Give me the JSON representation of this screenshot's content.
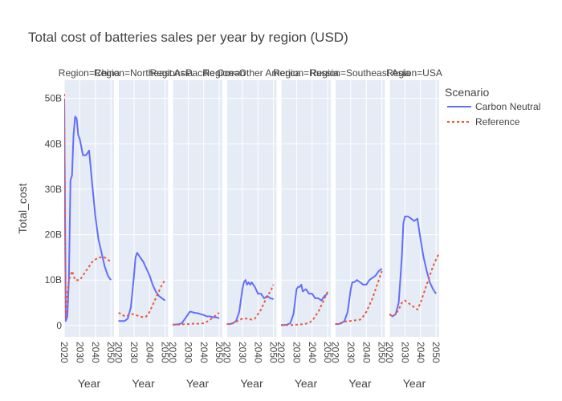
{
  "chart_data": {
    "type": "line",
    "title": "Total cost of batteries sales per year by region (USD)",
    "xlabel": "Year",
    "ylabel": "Total_cost",
    "xlim": [
      2020,
      2052
    ],
    "ylim": [
      -2.5,
      54
    ],
    "x_ticks": [
      "2020",
      "2030",
      "2040",
      "2050"
    ],
    "y_ticks": [
      {
        "value": 0,
        "label": "0"
      },
      {
        "value": 10,
        "label": "10B"
      },
      {
        "value": 20,
        "label": "20B"
      },
      {
        "value": 30,
        "label": "30B"
      },
      {
        "value": 40,
        "label": "40B"
      },
      {
        "value": 50,
        "label": "50B"
      }
    ],
    "y_unit": "billions USD",
    "legend": {
      "title": "Scenario",
      "placement": "right",
      "entries": [
        {
          "name": "Carbon Neutral",
          "color": "#636efa",
          "dash": "solid"
        },
        {
          "name": "Reference",
          "color": "#ef553b",
          "dash": "dot"
        }
      ]
    },
    "facets": [
      {
        "label": "Region=China",
        "series": [
          {
            "name": "Carbon Neutral",
            "x": [
              2020,
              2021,
              2022,
              2023,
              2024,
              2025,
              2026,
              2027,
              2028,
              2029,
              2030,
              2032,
              2034,
              2036,
              2038,
              2040,
              2042,
              2044,
              2046,
              2048,
              2050
            ],
            "y": [
              50,
              1,
              2,
              10,
              32,
              33,
              42,
              46,
              45.5,
              42,
              41,
              37.5,
              37.5,
              38.5,
              31,
              24,
              19,
              16,
              13,
              11,
              10
            ]
          },
          {
            "name": "Reference",
            "x": [
              2020,
              2021,
              2022,
              2023,
              2024,
              2025,
              2026,
              2027,
              2028,
              2030,
              2032,
              2034,
              2036,
              2038,
              2040,
              2042,
              2044,
              2046,
              2048,
              2050
            ],
            "y": [
              51,
              1.5,
              7,
              10,
              11,
              12,
              11,
              10,
              10,
              10,
              11,
              12,
              13,
              14,
              14.5,
              15,
              15,
              15,
              14.5,
              14
            ]
          }
        ]
      },
      {
        "label": "Region=Northeast Asia",
        "series": [
          {
            "name": "Carbon Neutral",
            "x": [
              2020,
              2022,
              2024,
              2026,
              2028,
              2030,
              2031,
              2032,
              2034,
              2036,
              2038,
              2040,
              2042,
              2044,
              2046,
              2048,
              2050
            ],
            "y": [
              1,
              1,
              1,
              1.5,
              4,
              11,
              15,
              16,
              15,
              14,
              12.5,
              11,
              9,
              7.5,
              6.5,
              6,
              5.5
            ]
          },
          {
            "name": "Reference",
            "x": [
              2020,
              2022,
              2024,
              2026,
              2028,
              2030,
              2032,
              2034,
              2036,
              2038,
              2040,
              2042,
              2044,
              2046,
              2048,
              2050
            ],
            "y": [
              2.8,
              2.5,
              2,
              2.2,
              2.5,
              2.5,
              2.2,
              2,
              1.8,
              2,
              3,
              4.5,
              6,
              7.5,
              9,
              10
            ]
          }
        ]
      },
      {
        "label": "Region=Pacific Ocean",
        "series": [
          {
            "name": "Carbon Neutral",
            "x": [
              2020,
              2022,
              2024,
              2026,
              2028,
              2030,
              2031,
              2032,
              2034,
              2036,
              2038,
              2040,
              2042,
              2044,
              2046,
              2048,
              2050
            ],
            "y": [
              0.2,
              0.2,
              0.3,
              0.5,
              1.5,
              2.5,
              3,
              3,
              2.8,
              2.7,
              2.5,
              2.3,
              2,
              2,
              1.8,
              1.8,
              1.6
            ]
          },
          {
            "name": "Reference",
            "x": [
              2020,
              2022,
              2024,
              2026,
              2028,
              2030,
              2032,
              2034,
              2036,
              2038,
              2040,
              2042,
              2044,
              2046,
              2048,
              2050
            ],
            "y": [
              0.2,
              0.2,
              0.2,
              0.2,
              0.3,
              0.3,
              0.4,
              0.4,
              0.4,
              0.4,
              0.5,
              0.8,
              1.2,
              1.8,
              2.3,
              2.8
            ]
          }
        ]
      },
      {
        "label": "Region=Other America",
        "series": [
          {
            "name": "Carbon Neutral",
            "x": [
              2020,
              2022,
              2024,
              2026,
              2028,
              2030,
              2031,
              2032,
              2033,
              2034,
              2035,
              2036,
              2037,
              2038,
              2040,
              2042,
              2044,
              2046,
              2048,
              2050
            ],
            "y": [
              0.3,
              0.3,
              0.5,
              1,
              3,
              8,
              9.5,
              10,
              9,
              9.5,
              9,
              9.5,
              9,
              8.5,
              7,
              7,
              6,
              6.5,
              6,
              5.8
            ]
          },
          {
            "name": "Reference",
            "x": [
              2020,
              2022,
              2024,
              2026,
              2028,
              2030,
              2032,
              2034,
              2036,
              2038,
              2040,
              2042,
              2044,
              2046,
              2048,
              2050
            ],
            "y": [
              0.3,
              0.4,
              0.5,
              0.8,
              1.2,
              1.5,
              1.5,
              1.5,
              1.3,
              1.5,
              2.5,
              3.5,
              5,
              6.5,
              7.5,
              9
            ]
          }
        ]
      },
      {
        "label": "Region=Russia",
        "series": [
          {
            "name": "Carbon Neutral",
            "x": [
              2020,
              2022,
              2024,
              2026,
              2028,
              2030,
              2031,
              2032,
              2033,
              2034,
              2036,
              2038,
              2040,
              2042,
              2044,
              2046,
              2048,
              2050
            ],
            "y": [
              0.1,
              0.1,
              0.2,
              0.5,
              2.5,
              8,
              8.5,
              8.5,
              9,
              7.5,
              8,
              7,
              7,
              6,
              6,
              5.5,
              6.5,
              7
            ]
          },
          {
            "name": "Reference",
            "x": [
              2020,
              2022,
              2024,
              2026,
              2028,
              2030,
              2032,
              2034,
              2036,
              2038,
              2040,
              2042,
              2044,
              2046,
              2048,
              2050
            ],
            "y": [
              0.1,
              0.1,
              0.1,
              0.1,
              0.1,
              0.2,
              0.2,
              0.3,
              0.4,
              0.6,
              1,
              2,
              3,
              4.5,
              6,
              7.5
            ]
          }
        ]
      },
      {
        "label": "Region=Southeast Asia",
        "series": [
          {
            "name": "Carbon Neutral",
            "x": [
              2020,
              2022,
              2024,
              2026,
              2028,
              2030,
              2031,
              2032,
              2034,
              2036,
              2038,
              2040,
              2042,
              2044,
              2046,
              2048,
              2050
            ],
            "y": [
              0.3,
              0.3,
              0.5,
              1,
              3,
              8,
              9.5,
              9.5,
              10,
              9.5,
              9,
              9,
              10,
              10.5,
              11,
              12,
              12.5
            ]
          },
          {
            "name": "Reference",
            "x": [
              2020,
              2022,
              2024,
              2026,
              2028,
              2030,
              2032,
              2034,
              2036,
              2038,
              2040,
              2042,
              2044,
              2046,
              2048,
              2050
            ],
            "y": [
              0.3,
              0.4,
              0.6,
              0.8,
              1,
              1,
              1.1,
              1.2,
              1.3,
              2,
              3,
              4.5,
              6,
              8,
              10,
              12
            ]
          }
        ]
      },
      {
        "label": "Region=USA",
        "series": [
          {
            "name": "Carbon Neutral",
            "x": [
              2020,
              2022,
              2024,
              2026,
              2028,
              2029,
              2030,
              2031,
              2032,
              2034,
              2036,
              2038,
              2040,
              2042,
              2044,
              2046,
              2048,
              2050
            ],
            "y": [
              2.5,
              2,
              2.5,
              5,
              15,
              22.5,
              24,
              24,
              24,
              23.5,
              23,
              23.5,
              19,
              15,
              12,
              9.5,
              8,
              7
            ]
          },
          {
            "name": "Reference",
            "x": [
              2020,
              2022,
              2024,
              2026,
              2028,
              2030,
              2032,
              2034,
              2036,
              2038,
              2040,
              2042,
              2044,
              2046,
              2048,
              2050,
              2052
            ],
            "y": [
              2.5,
              2,
              2.5,
              3.5,
              5,
              5.5,
              5,
              4.5,
              4,
              3.5,
              5,
              7,
              9,
              11,
              13,
              14.5,
              16
            ]
          }
        ]
      }
    ]
  }
}
